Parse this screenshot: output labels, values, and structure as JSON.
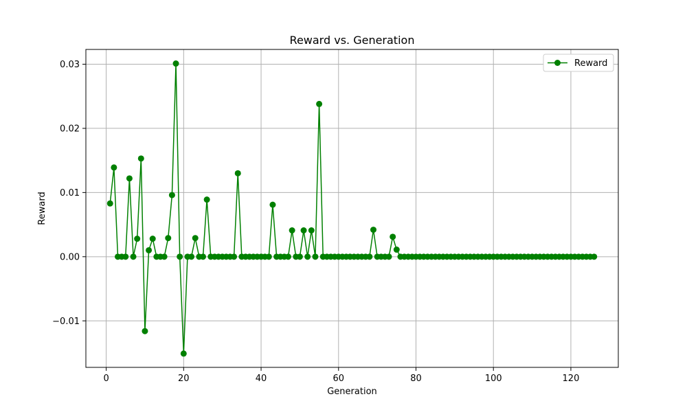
{
  "chart_data": {
    "type": "line",
    "title": "Reward vs. Generation",
    "xlabel": "Generation",
    "ylabel": "Reward",
    "xlim": [
      -5.25,
      132.25
    ],
    "ylim": [
      -0.01725,
      0.0323
    ],
    "xticks": [
      0,
      20,
      40,
      60,
      80,
      100,
      120
    ],
    "yticks": [
      -0.01,
      0.0,
      0.01,
      0.02,
      0.03
    ],
    "ytick_labels": [
      "−0.01",
      "0.00",
      "0.01",
      "0.02",
      "0.03"
    ],
    "grid": true,
    "legend_position": "top-right",
    "series": [
      {
        "name": "Reward",
        "color": "#008000",
        "marker": "circle",
        "x": [
          1,
          2,
          3,
          4,
          5,
          6,
          7,
          8,
          9,
          10,
          11,
          12,
          13,
          14,
          15,
          16,
          17,
          18,
          19,
          20,
          21,
          22,
          23,
          24,
          25,
          26,
          27,
          28,
          29,
          30,
          31,
          32,
          33,
          34,
          35,
          36,
          37,
          38,
          39,
          40,
          41,
          42,
          43,
          44,
          45,
          46,
          47,
          48,
          49,
          50,
          51,
          52,
          53,
          54,
          55,
          56,
          57,
          58,
          59,
          60,
          61,
          62,
          63,
          64,
          65,
          66,
          67,
          68,
          69,
          70,
          71,
          72,
          73,
          74,
          75,
          76,
          77,
          78,
          79,
          80,
          81,
          82,
          83,
          84,
          85,
          86,
          87,
          88,
          89,
          90,
          91,
          92,
          93,
          94,
          95,
          96,
          97,
          98,
          99,
          100,
          101,
          102,
          103,
          104,
          105,
          106,
          107,
          108,
          109,
          110,
          111,
          112,
          113,
          114,
          115,
          116,
          117,
          118,
          119,
          120,
          121,
          122,
          123,
          124,
          125,
          126
        ],
        "y": [
          0.0083,
          0.0139,
          0,
          0,
          0,
          0.0122,
          0,
          0.0028,
          0.0153,
          -0.0116,
          0.001,
          0.0028,
          0,
          0,
          0,
          0.0029,
          0.0096,
          0.0301,
          0,
          -0.0151,
          0,
          0,
          0.0029,
          0,
          0,
          0.0089,
          0,
          0,
          0,
          0,
          0,
          0,
          0,
          0.013,
          0,
          0,
          0,
          0,
          0,
          0,
          0,
          0,
          0.0081,
          0,
          0,
          0,
          0,
          0.0041,
          0,
          0,
          0.0041,
          0,
          0.0041,
          0,
          0.0238,
          0,
          0,
          0,
          0,
          0,
          0,
          0,
          0,
          0,
          0,
          0,
          0,
          0,
          0.0042,
          0,
          0,
          0,
          0,
          0.0031,
          0.0011,
          0,
          0,
          0,
          0,
          0,
          0,
          0,
          0,
          0,
          0,
          0,
          0,
          0,
          0,
          0,
          0,
          0,
          0,
          0,
          0,
          0,
          0,
          0,
          0,
          0,
          0,
          0,
          0,
          0,
          0,
          0,
          0,
          0,
          0,
          0,
          0,
          0,
          0,
          0,
          0,
          0,
          0,
          0,
          0,
          0,
          0,
          0,
          0,
          0,
          0,
          0
        ]
      }
    ]
  }
}
